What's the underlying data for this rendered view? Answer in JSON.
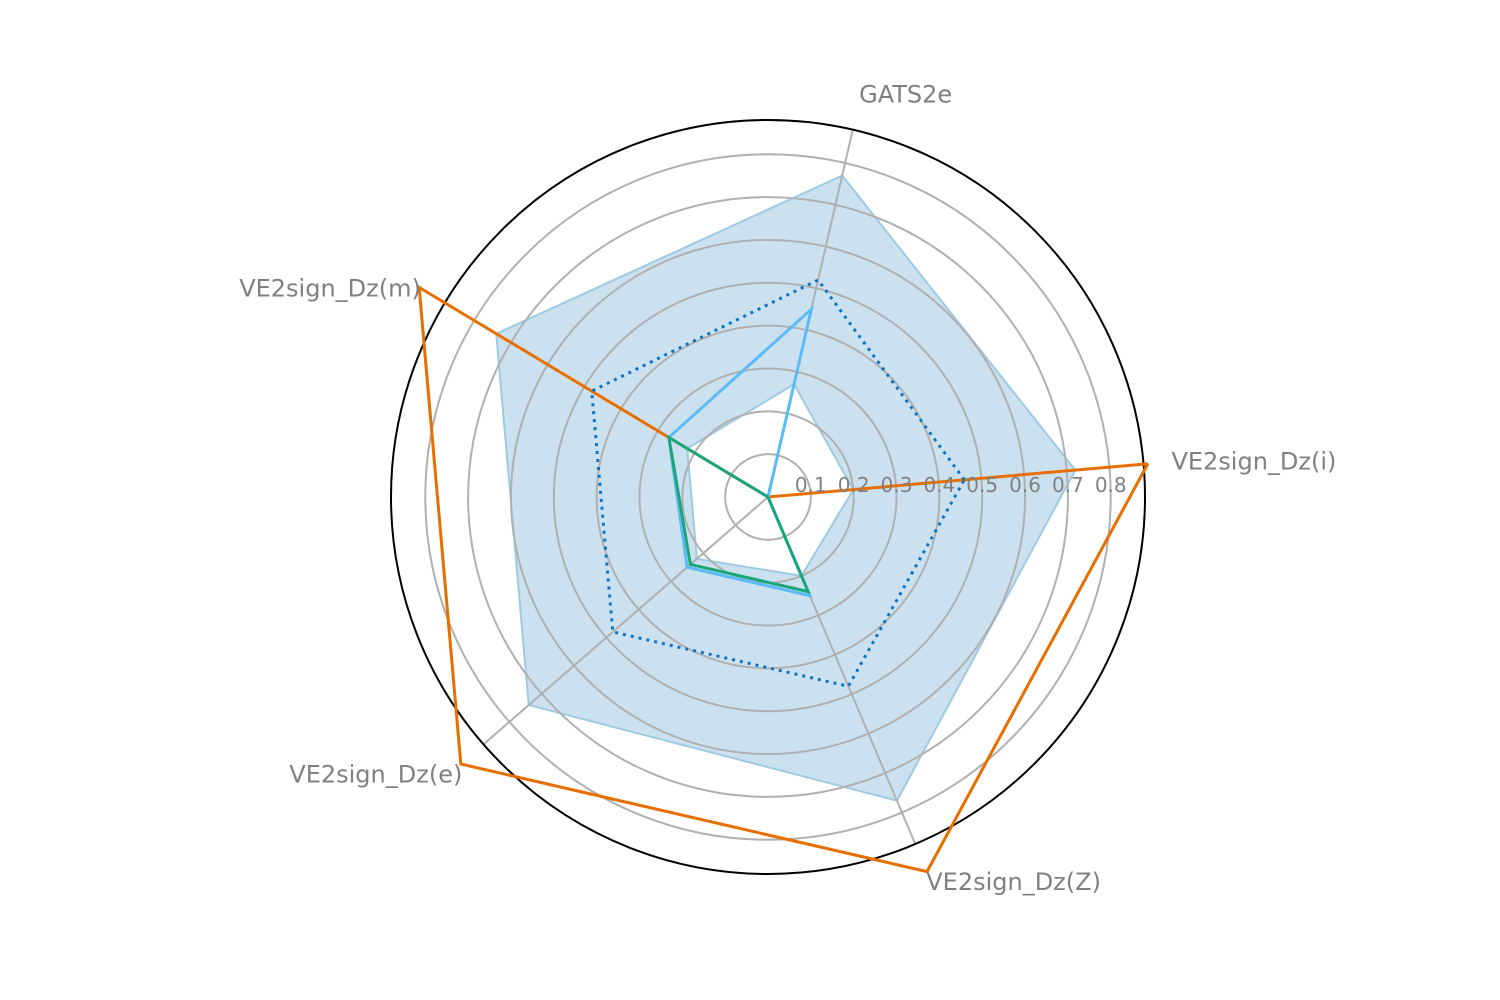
{
  "chart_data": {
    "type": "radar",
    "title": "",
    "axes": [
      "VE2sign_Dz(i)",
      "GATS2e",
      "VE2sign_Dz(m)",
      "VE2sign_Dz(e)",
      "VE2sign_Dz(Z)"
    ],
    "rlim": [
      0,
      0.88
    ],
    "rticks": [
      0.1,
      0.2,
      0.3,
      0.4,
      0.5,
      0.6,
      0.7,
      0.8
    ],
    "rtick_labels": [
      "0.1",
      "0.2",
      "0.3",
      "0.4",
      "0.5",
      "0.6",
      "0.7",
      "0.8"
    ],
    "grid": true,
    "band": {
      "name": "range",
      "color": "#9ecae1",
      "outer": [
        0.72,
        0.77,
        0.74,
        0.74,
        0.77
      ],
      "inner": [
        0.2,
        0.27,
        0.22,
        0.22,
        0.2
      ]
    },
    "series": [
      {
        "name": "orange",
        "color": "#e66f00",
        "style": "solid",
        "values": [
          0.89,
          0.0,
          0.95,
          0.95,
          0.95
        ]
      },
      {
        "name": "dotted-blue",
        "color": "#0a74c7",
        "style": "dotted",
        "values": [
          0.46,
          0.52,
          0.48,
          0.48,
          0.48
        ]
      },
      {
        "name": "light-blue",
        "color": "#5bbcf5",
        "style": "solid",
        "values": [
          0.0,
          0.45,
          0.27,
          0.25,
          0.25
        ]
      },
      {
        "name": "green",
        "color": "#1aa67a",
        "style": "solid",
        "values": [
          0.0,
          0.0,
          0.27,
          0.24,
          0.24
        ]
      }
    ]
  }
}
